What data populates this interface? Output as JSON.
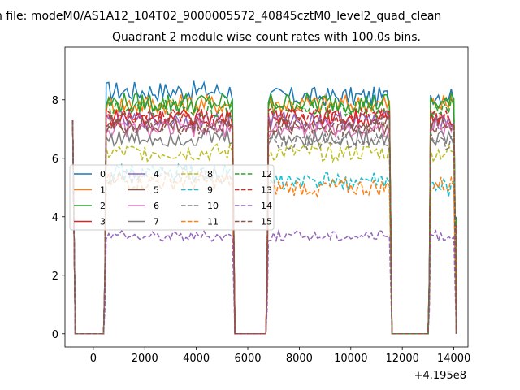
{
  "suptitle": "n file: modeM0/AS1A12_104T02_9000005572_40845cztM0_level2_quad_clean",
  "chart_data": {
    "type": "line",
    "title": "Quadrant 2 module wise count rates with 100.0s bins.",
    "xlabel": "",
    "ylabel": "",
    "x_offset_label": "+4.195e8",
    "xlim": [
      -1100,
      14550
    ],
    "ylim": [
      -0.45,
      9.8
    ],
    "xticks": [
      0,
      2000,
      4000,
      6000,
      8000,
      10000,
      12000,
      14000
    ],
    "yticks": [
      0,
      2,
      4,
      6,
      8
    ],
    "x_segments": [
      [
        -800,
        -700
      ],
      [
        -700,
        400
      ],
      [
        400,
        500,
        5400
      ],
      [
        5400,
        5500
      ],
      [
        5500,
        6600
      ],
      [
        6700,
        6800,
        11500
      ],
      [
        11500,
        11600
      ],
      [
        11600,
        12900
      ],
      [
        13000,
        13100,
        14000
      ],
      [
        14000,
        14100
      ]
    ],
    "legend": {
      "placement": "center-left",
      "columns": 4
    },
    "series": [
      {
        "name": "0",
        "color": "#1f77b4",
        "dash": "solid",
        "level": 8.0,
        "noise": 0.35
      },
      {
        "name": "1",
        "color": "#ff7f0e",
        "dash": "solid",
        "level": 7.85,
        "noise": 0.35
      },
      {
        "name": "2",
        "color": "#2ca02c",
        "dash": "solid",
        "level": 7.9,
        "noise": 0.35
      },
      {
        "name": "3",
        "color": "#d62728",
        "dash": "solid",
        "level": 7.4,
        "noise": 0.3
      },
      {
        "name": "4",
        "color": "#9467bd",
        "dash": "solid",
        "level": 7.3,
        "noise": 0.3
      },
      {
        "name": "5",
        "color": "#8c564b",
        "dash": "solid",
        "level": 7.1,
        "noise": 0.3
      },
      {
        "name": "6",
        "color": "#e377c2",
        "dash": "solid",
        "level": 7.0,
        "noise": 0.3
      },
      {
        "name": "7",
        "color": "#7f7f7f",
        "dash": "solid",
        "level": 6.7,
        "noise": 0.3
      },
      {
        "name": "8",
        "color": "#bcbd22",
        "dash": "dashed",
        "level": 6.2,
        "noise": 0.3
      },
      {
        "name": "9",
        "color": "#17becf",
        "dash": "dashed",
        "level": 5.5,
        "noise": 0.3
      },
      {
        "name": "10",
        "color": "#7f7f7f",
        "dash": "dashed",
        "level": 6.5,
        "noise": 0.3
      },
      {
        "name": "11",
        "color": "#ff7f0e",
        "dash": "dashed",
        "level": 5.1,
        "noise": 0.3
      },
      {
        "name": "12",
        "color": "#2ca02c",
        "dash": "dashed",
        "level": 7.7,
        "noise": 0.3
      },
      {
        "name": "13",
        "color": "#d62728",
        "dash": "dashed",
        "level": 7.4,
        "noise": 0.3
      },
      {
        "name": "14",
        "color": "#9467bd",
        "dash": "dashed",
        "level": 3.35,
        "noise": 0.18
      },
      {
        "name": "15",
        "color": "#8c564b",
        "dash": "dashed",
        "level": 7.1,
        "noise": 0.3
      }
    ],
    "series_overrides": {
      "0": {
        "segment_levels": [
          8.3,
          8.1,
          8.2
        ]
      },
      "9": {
        "segment_levels": [
          5.5,
          5.2,
          5.0
        ]
      },
      "11": {
        "segment_levels": [
          5.2,
          5.0,
          5.1
        ]
      },
      "10": {
        "segment_levels": [
          5.4,
          6.6,
          6.6
        ]
      }
    },
    "zero_level": 0.0,
    "start_spike": 7.3
  }
}
